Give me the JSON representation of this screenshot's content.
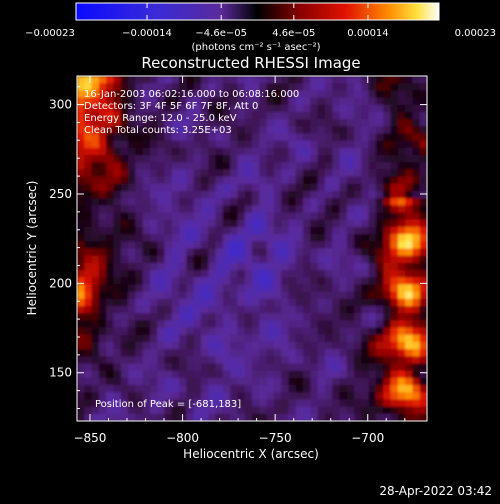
{
  "colors": {
    "background": "#000000",
    "foreground": "#ffffff"
  },
  "chart_data": {
    "type": "heatmap",
    "title": "Reconstructed RHESSI Image",
    "xlabel": "Heliocentric X (arcsec)",
    "ylabel": "Heliocentric Y (arcsec)",
    "xlim": [
      -857,
      -668
    ],
    "ylim": [
      123,
      316
    ],
    "x_ticks": [
      -850,
      -800,
      -750,
      -700
    ],
    "y_ticks": [
      150,
      200,
      250,
      300
    ],
    "x_tick_labels": [
      "−850",
      "−800",
      "−750",
      "−700"
    ],
    "y_tick_labels": [
      "150",
      "200",
      "250",
      "300"
    ],
    "annotations": [
      "16-Jan-2003 06:02:16.000 to 06:08:16.000",
      "Detectors: 3F 4F 5F 6F 7F 8F, Att 0",
      "Energy Range: 12.0 - 25.0 keV",
      "Clean    Total counts: 3.25E+03"
    ],
    "peak_label": "Position of Peak = [-681,183]",
    "peak": [
      -681,
      183
    ],
    "colorbar": {
      "range": [
        -0.00023,
        0.00023
      ],
      "ticks": [
        -0.00023,
        -0.00014,
        -4.6e-05,
        4.6e-05,
        0.00014,
        0.00023
      ],
      "tick_labels": [
        "−0.00023",
        "−0.00014",
        "−4.6e−05",
        "4.6e−05",
        "0.00014",
        "0.00023"
      ],
      "unit_label": "(photons cm⁻² s⁻¹ asec⁻²)"
    }
  },
  "footer": {
    "date": "28-Apr-2022 03:42"
  }
}
